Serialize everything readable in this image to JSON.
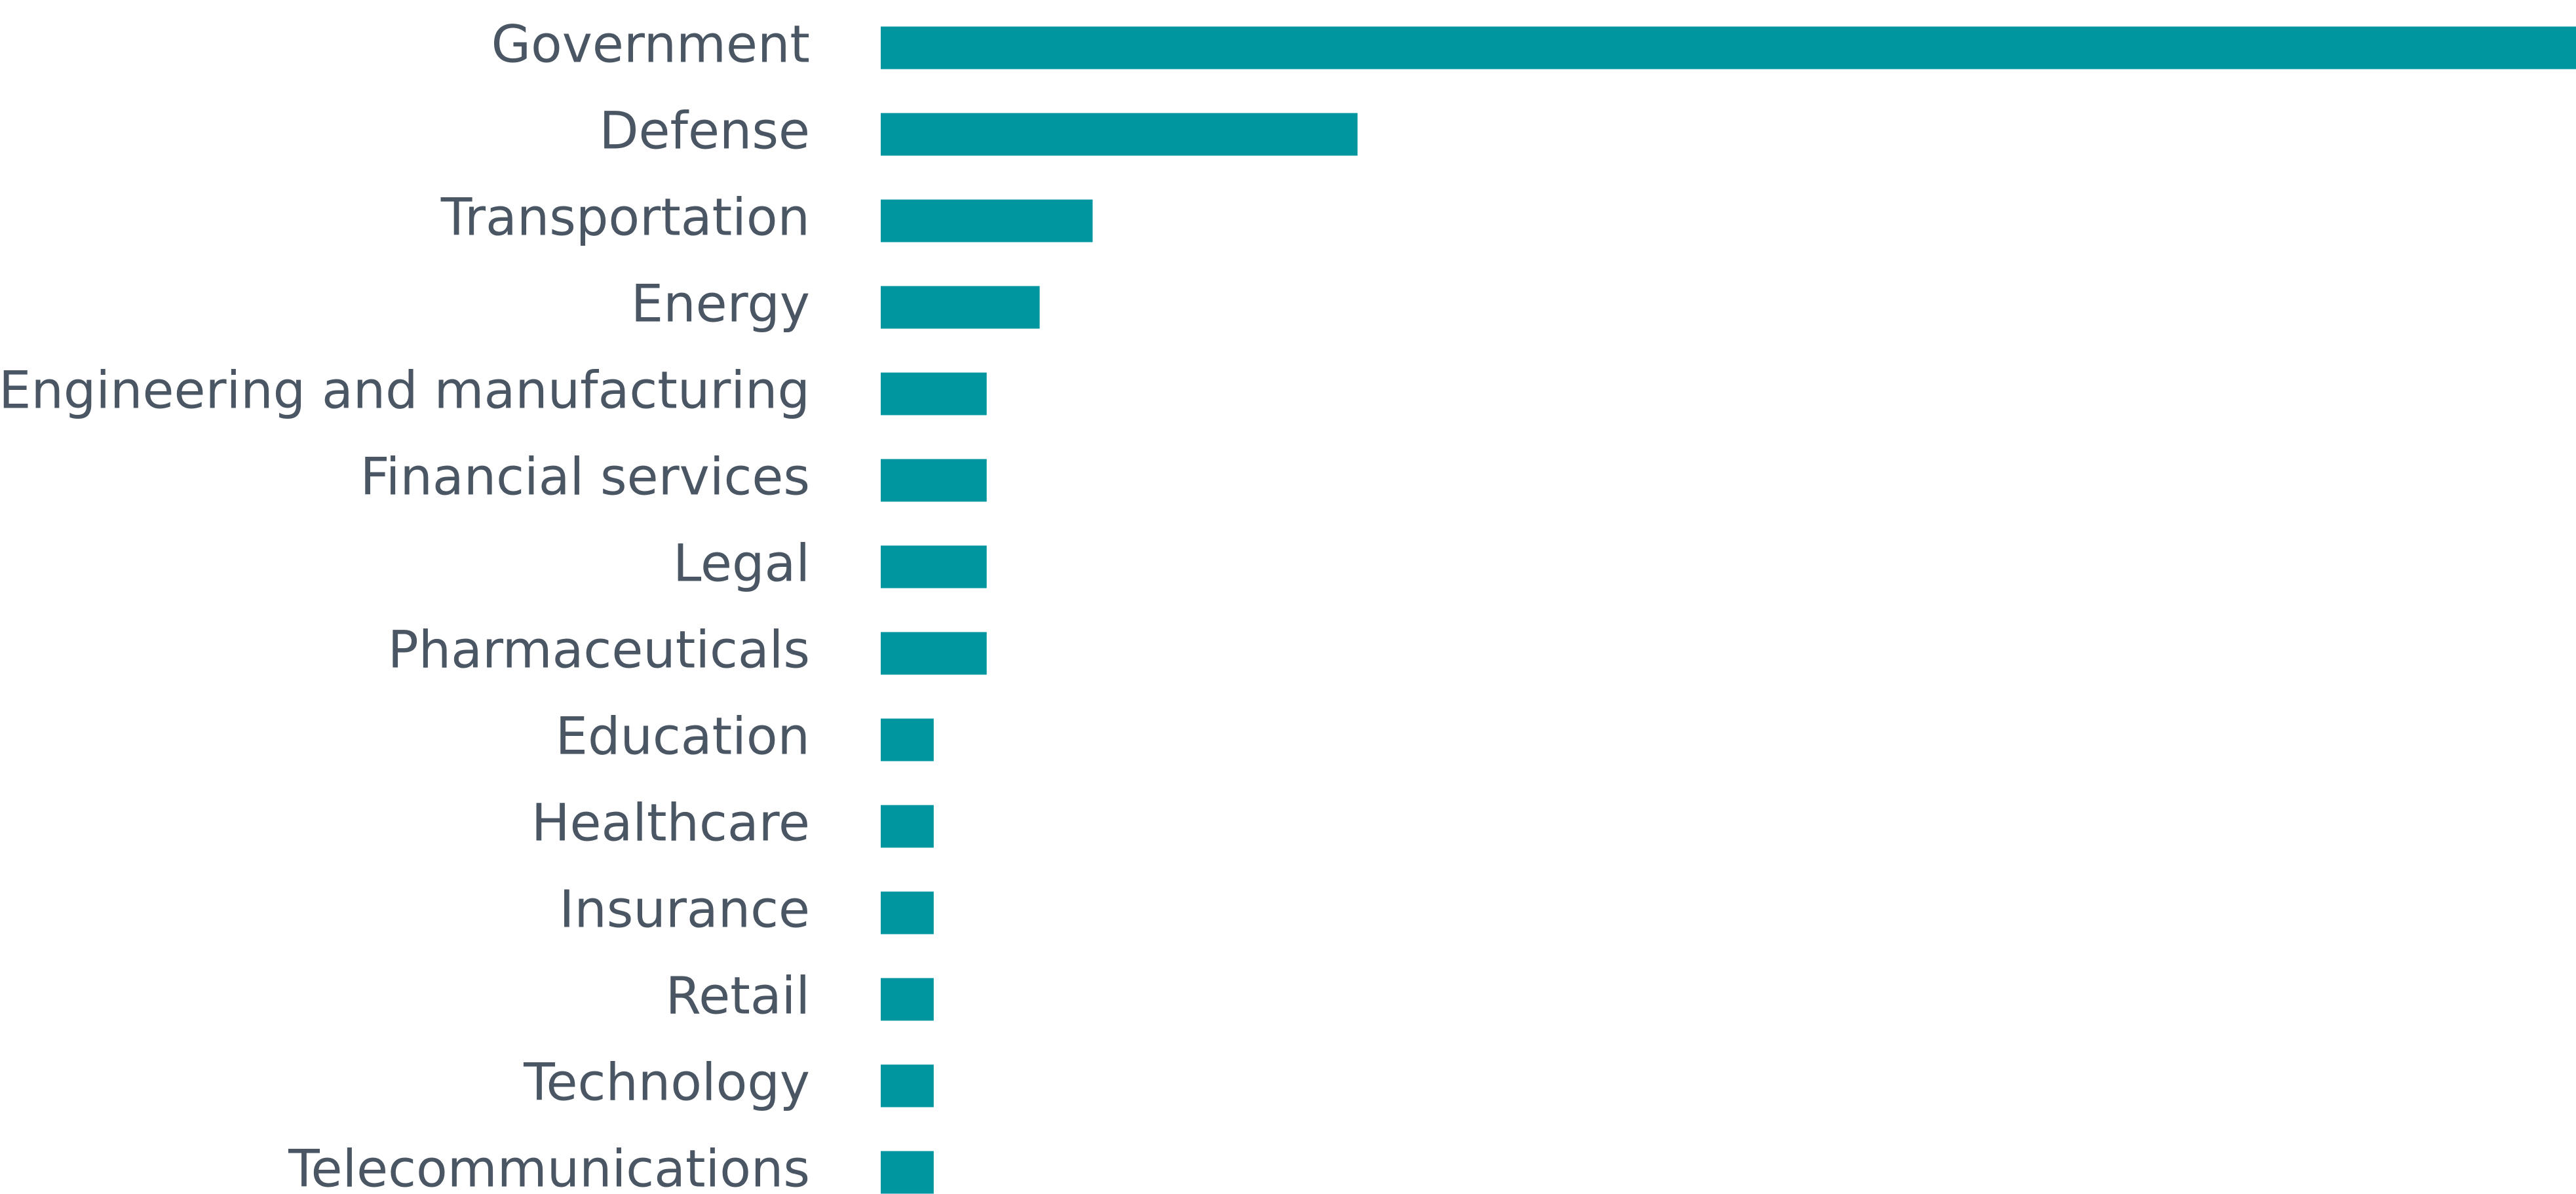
{
  "chart_data": {
    "type": "bar",
    "orientation": "horizontal",
    "categories": [
      "Government",
      "Defense",
      "Transportation",
      "Energy",
      "Engineering and manufacturing",
      "Financial services",
      "Legal",
      "Pharmaceuticals",
      "Education",
      "Healthcare",
      "Insurance",
      "Retail",
      "Technology",
      "Telecommunications"
    ],
    "values": [
      32,
      9,
      4,
      3,
      2,
      2,
      2,
      2,
      1,
      1,
      1,
      1,
      1,
      1
    ],
    "color": "#0096a0"
  }
}
